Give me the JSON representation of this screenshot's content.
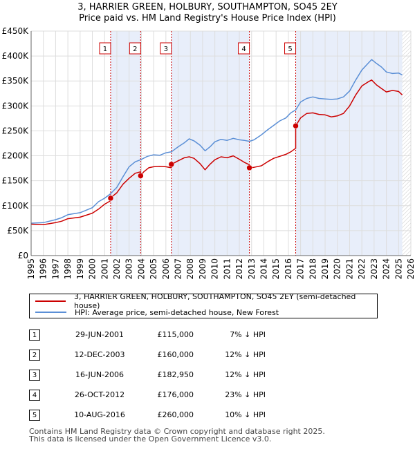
{
  "chart_data": {
    "type": "line",
    "title": "3, HARRIER GREEN, HOLBURY, SOUTHAMPTON, SO45 2EY",
    "subtitle": "Price paid vs. HM Land Registry's House Price Index (HPI)",
    "xlabel": "",
    "ylabel": "",
    "xlim": [
      1995,
      2026
    ],
    "ylim": [
      0,
      450000
    ],
    "x_ticks": [
      "1995",
      "1996",
      "1997",
      "1998",
      "1999",
      "2000",
      "2001",
      "2002",
      "2003",
      "2004",
      "2005",
      "2006",
      "2007",
      "2008",
      "2009",
      "2010",
      "2011",
      "2012",
      "2013",
      "2014",
      "2015",
      "2016",
      "2017",
      "2018",
      "2019",
      "2020",
      "2021",
      "2022",
      "2023",
      "2024",
      "2025",
      "2026"
    ],
    "y_ticks": [
      {
        "value": 0,
        "label": "£0"
      },
      {
        "value": 50000,
        "label": "£50K"
      },
      {
        "value": 100000,
        "label": "£100K"
      },
      {
        "value": 150000,
        "label": "£150K"
      },
      {
        "value": 200000,
        "label": "£200K"
      },
      {
        "value": 250000,
        "label": "£250K"
      },
      {
        "value": 300000,
        "label": "£300K"
      },
      {
        "value": 350000,
        "label": "£350K"
      },
      {
        "value": 400000,
        "label": "£400K"
      },
      {
        "value": 450000,
        "label": "£450K"
      }
    ],
    "series": [
      {
        "name": "3, HARRIER GREEN, HOLBURY, SOUTHAMPTON, SO45 2EY (semi-detached house)",
        "color": "#cc0000",
        "x": [
          1995.0,
          1996.0,
          1997.0,
          1997.5,
          1998.0,
          1999.0,
          2000.0,
          2000.5,
          2001.0,
          2001.49,
          2001.49,
          2001.6,
          2002.0,
          2002.5,
          2003.0,
          2003.5,
          2003.94,
          2003.94,
          2004.2,
          2004.6,
          2005.0,
          2005.5,
          2006.0,
          2006.45,
          2006.45,
          2007.0,
          2007.5,
          2007.9,
          2008.3,
          2008.8,
          2009.2,
          2009.6,
          2010.0,
          2010.5,
          2011.0,
          2011.5,
          2012.0,
          2012.4,
          2012.82,
          2012.82,
          2013.2,
          2013.8,
          2014.3,
          2014.8,
          2015.3,
          2015.8,
          2016.2,
          2016.6,
          2016.6,
          2017.0,
          2017.5,
          2018.0,
          2018.5,
          2019.0,
          2019.5,
          2020.0,
          2020.5,
          2021.0,
          2021.5,
          2022.0,
          2022.5,
          2022.8,
          2023.2,
          2023.6,
          2024.0,
          2024.5,
          2025.0,
          2025.3
        ],
        "y": [
          63000,
          62000,
          66000,
          69000,
          74000,
          77000,
          85000,
          93000,
          103000,
          110000,
          115000,
          118000,
          126000,
          143000,
          155000,
          165000,
          168000,
          160000,
          168000,
          176000,
          178000,
          179000,
          178000,
          176000,
          182950,
          190000,
          196000,
          198000,
          195000,
          184000,
          172000,
          183000,
          192000,
          198000,
          196000,
          200000,
          193000,
          187000,
          182000,
          176000,
          177000,
          180000,
          188000,
          195000,
          199000,
          203000,
          208000,
          215000,
          260000,
          276000,
          285000,
          286000,
          283000,
          282000,
          278000,
          280000,
          285000,
          300000,
          322000,
          340000,
          348000,
          352000,
          342000,
          335000,
          328000,
          331000,
          329000,
          322000
        ]
      },
      {
        "name": "HPI: Average price, semi-detached house, New Forest",
        "color": "#5b8fd6",
        "x": [
          1995.0,
          1996.0,
          1997.0,
          1997.5,
          1998.0,
          1999.0,
          2000.0,
          2000.5,
          2001.0,
          2001.49,
          2002.0,
          2002.5,
          2003.0,
          2003.5,
          2003.94,
          2004.5,
          2005.0,
          2005.5,
          2006.0,
          2006.45,
          2007.0,
          2007.5,
          2007.9,
          2008.3,
          2008.8,
          2009.2,
          2009.6,
          2010.0,
          2010.5,
          2011.0,
          2011.5,
          2012.0,
          2012.4,
          2012.82,
          2013.2,
          2013.8,
          2014.3,
          2014.8,
          2015.3,
          2015.8,
          2016.2,
          2016.6,
          2017.0,
          2017.5,
          2018.0,
          2018.5,
          2019.0,
          2019.5,
          2020.0,
          2020.5,
          2021.0,
          2021.5,
          2022.0,
          2022.5,
          2022.8,
          2023.2,
          2023.6,
          2024.0,
          2024.5,
          2025.0,
          2025.3
        ],
        "y": [
          65000,
          66000,
          72000,
          76000,
          82000,
          86000,
          96000,
          108000,
          115000,
          124000,
          137000,
          158000,
          178000,
          188000,
          192000,
          199000,
          202000,
          201000,
          206000,
          208000,
          218000,
          226000,
          234000,
          230000,
          221000,
          210000,
          218000,
          228000,
          233000,
          231000,
          235000,
          232000,
          231000,
          229000,
          232000,
          242000,
          252000,
          261000,
          270000,
          276000,
          286000,
          292000,
          308000,
          315000,
          318000,
          315000,
          314000,
          313000,
          314000,
          318000,
          330000,
          352000,
          372000,
          385000,
          393000,
          385000,
          378000,
          368000,
          365000,
          366000,
          362000
        ]
      }
    ],
    "sale_markers": [
      {
        "id": "1",
        "x": 2001.49,
        "y": 115000
      },
      {
        "id": "2",
        "x": 2003.94,
        "y": 160000
      },
      {
        "id": "3",
        "x": 2006.45,
        "y": 182950
      },
      {
        "id": "4",
        "x": 2012.82,
        "y": 176000
      },
      {
        "id": "5",
        "x": 2016.6,
        "y": 260000
      }
    ],
    "shaded_spans": [
      [
        2001.49,
        2003.94
      ],
      [
        2006.45,
        2012.82
      ],
      [
        2016.6,
        2025.3
      ]
    ],
    "hatched_from": 2025.3
  },
  "legend": {
    "property_label": "3, HARRIER GREEN, HOLBURY, SOUTHAMPTON, SO45 2EY (semi-detached house)",
    "hpi_label": "HPI: Average price, semi-detached house, New Forest"
  },
  "sales": [
    {
      "num": "1",
      "date": "29-JUN-2001",
      "price": "£115,000",
      "hpi": "7% ↓ HPI"
    },
    {
      "num": "2",
      "date": "12-DEC-2003",
      "price": "£160,000",
      "hpi": "12% ↓ HPI"
    },
    {
      "num": "3",
      "date": "16-JUN-2006",
      "price": "£182,950",
      "hpi": "12% ↓ HPI"
    },
    {
      "num": "4",
      "date": "26-OCT-2012",
      "price": "£176,000",
      "hpi": "23% ↓ HPI"
    },
    {
      "num": "5",
      "date": "10-AUG-2016",
      "price": "£260,000",
      "hpi": "10% ↓ HPI"
    }
  ],
  "footer": {
    "line1": "Contains HM Land Registry data © Crown copyright and database right 2025.",
    "line2": "This data is licensed under the Open Government Licence v3.0."
  }
}
